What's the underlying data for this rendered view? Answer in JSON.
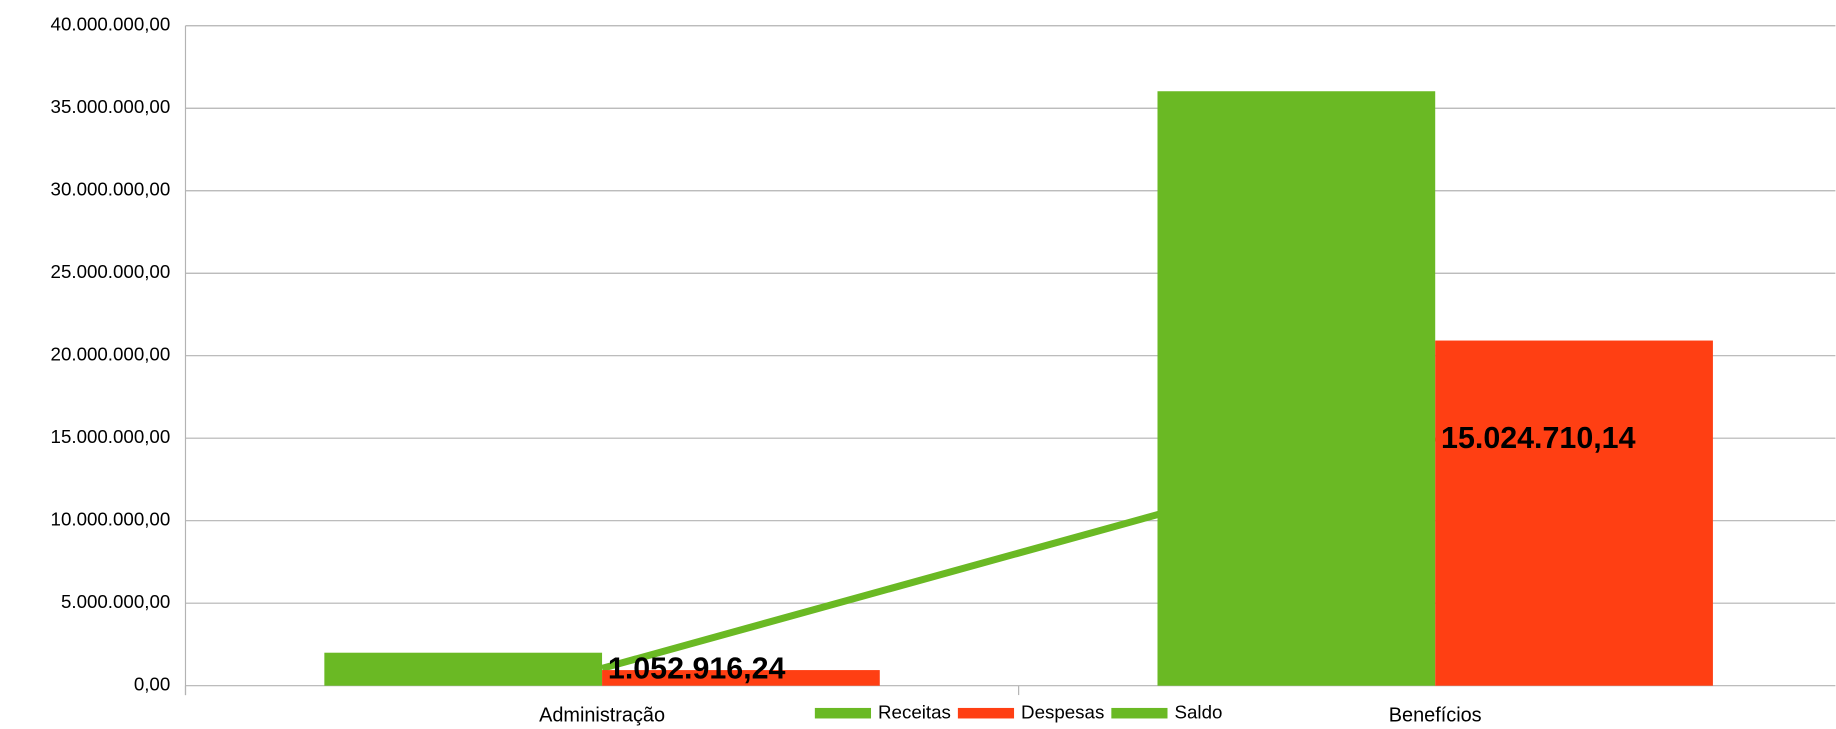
{
  "chart_data": {
    "type": "bar",
    "categories": [
      "Administração",
      "Benefícios"
    ],
    "series": [
      {
        "name": "Receitas",
        "color": "#6ab924",
        "values": [
          2000000,
          36030000
        ]
      },
      {
        "name": "Despesas",
        "color": "#ff3f13",
        "values": [
          947000,
          20920000
        ]
      },
      {
        "name": "Saldo",
        "color": "#6ab924",
        "type": "line",
        "values": [
          1052916.24,
          15024710.14
        ],
        "value_labels": [
          "1.052.916,24",
          "15.024.710,14"
        ]
      }
    ],
    "ylim": [
      0,
      40000000
    ],
    "yticks": [
      {
        "value": 0,
        "label": "0,00"
      },
      {
        "value": 5000000,
        "label": "5.000.000,00"
      },
      {
        "value": 10000000,
        "label": "10.000.000,00"
      },
      {
        "value": 15000000,
        "label": "15.000.000,00"
      },
      {
        "value": 20000000,
        "label": "20.000.000,00"
      },
      {
        "value": 25000000,
        "label": "25.000.000,00"
      },
      {
        "value": 30000000,
        "label": "30.000.000,00"
      },
      {
        "value": 35000000,
        "label": "35.000.000,00"
      },
      {
        "value": 40000000,
        "label": "40.000.000,00"
      }
    ],
    "grid": true,
    "legend": "bottom"
  }
}
